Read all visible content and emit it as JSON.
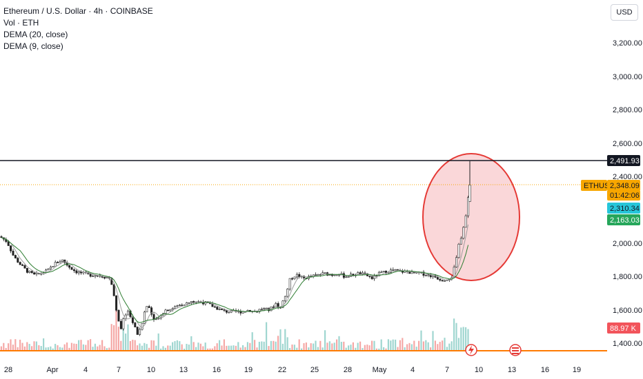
{
  "legend": {
    "title": "Ethereum / U.S. Dollar · 4h · COINBASE",
    "vol": "Vol · ETH",
    "dema20": "DEMA (20, close)",
    "dema9": "DEMA (9, close)"
  },
  "currency_button": "USD",
  "chart_data": {
    "type": "candlestick",
    "symbol": "ETHUSD",
    "y_ticks": [
      "3,200.00",
      "3,000.00",
      "2,800.00",
      "2,600.00",
      "2,400.00",
      "2,000.00",
      "1,800.00",
      "1,600.00",
      "1,400.00"
    ],
    "y_tick_values": [
      3200,
      3000,
      2800,
      2600,
      2400,
      2000,
      1800,
      1600,
      1400
    ],
    "ylim": [
      1340,
      3280
    ],
    "x_ticks": [
      "28",
      "Apr",
      "4",
      "7",
      "10",
      "13",
      "16",
      "19",
      "22",
      "25",
      "28",
      "May",
      "4",
      "7",
      "10",
      "13",
      "16",
      "19"
    ],
    "price_series_approx": [
      [
        0,
        2040
      ],
      [
        10,
        2010
      ],
      [
        20,
        1920
      ],
      [
        30,
        1870
      ],
      [
        40,
        1830
      ],
      [
        50,
        1810
      ],
      [
        60,
        1820
      ],
      [
        70,
        1840
      ],
      [
        80,
        1880
      ],
      [
        90,
        1900
      ],
      [
        100,
        1860
      ],
      [
        110,
        1830
      ],
      [
        120,
        1820
      ],
      [
        130,
        1810
      ],
      [
        140,
        1810
      ],
      [
        150,
        1800
      ],
      [
        160,
        1790
      ],
      [
        165,
        1700
      ],
      [
        170,
        1560
      ],
      [
        175,
        1480
      ],
      [
        180,
        1560
      ],
      [
        185,
        1600
      ],
      [
        190,
        1550
      ],
      [
        195,
        1500
      ],
      [
        200,
        1450
      ],
      [
        205,
        1500
      ],
      [
        210,
        1600
      ],
      [
        215,
        1640
      ],
      [
        220,
        1570
      ],
      [
        225,
        1540
      ],
      [
        230,
        1560
      ],
      [
        240,
        1600
      ],
      [
        250,
        1610
      ],
      [
        260,
        1630
      ],
      [
        270,
        1640
      ],
      [
        280,
        1650
      ],
      [
        290,
        1650
      ],
      [
        300,
        1640
      ],
      [
        310,
        1620
      ],
      [
        320,
        1600
      ],
      [
        330,
        1590
      ],
      [
        340,
        1590
      ],
      [
        350,
        1590
      ],
      [
        360,
        1600
      ],
      [
        370,
        1590
      ],
      [
        380,
        1610
      ],
      [
        390,
        1600
      ],
      [
        395,
        1620
      ],
      [
        400,
        1640
      ],
      [
        405,
        1610
      ],
      [
        410,
        1650
      ],
      [
        415,
        1700
      ],
      [
        420,
        1780
      ],
      [
        425,
        1800
      ],
      [
        430,
        1810
      ],
      [
        440,
        1790
      ],
      [
        450,
        1800
      ],
      [
        460,
        1810
      ],
      [
        470,
        1820
      ],
      [
        480,
        1810
      ],
      [
        490,
        1820
      ],
      [
        500,
        1800
      ],
      [
        510,
        1810
      ],
      [
        520,
        1820
      ],
      [
        530,
        1810
      ],
      [
        540,
        1790
      ],
      [
        550,
        1820
      ],
      [
        560,
        1830
      ],
      [
        570,
        1840
      ],
      [
        580,
        1830
      ],
      [
        590,
        1830
      ],
      [
        600,
        1820
      ],
      [
        610,
        1820
      ],
      [
        620,
        1810
      ],
      [
        630,
        1800
      ],
      [
        640,
        1780
      ],
      [
        650,
        1790
      ],
      [
        655,
        1800
      ],
      [
        660,
        1880
      ],
      [
        665,
        1990
      ],
      [
        670,
        2060
      ],
      [
        675,
        2150
      ],
      [
        678,
        2250
      ],
      [
        680,
        2348
      ]
    ],
    "last_candle_high": 2491.93,
    "horizontal_line": 2491.93,
    "price_tags": [
      {
        "label": "ETHUSD",
        "value": "2,348.09",
        "time": "01:42:06",
        "color": "#f7a600"
      },
      {
        "value": "2,491.93",
        "color": "#131722"
      },
      {
        "value": "2,310.34",
        "color": "#26c6da"
      },
      {
        "value": "2,163.03",
        "color": "#26a65b"
      },
      {
        "value": "88.97 K",
        "color": "#f2545b"
      }
    ],
    "volume_last": "88.97 K",
    "annotation": "highlight ellipse around price spike"
  },
  "colors": {
    "up": "#26a69a",
    "down": "#ef5350",
    "dema20": "#2e7d32",
    "dema9": "#b0b0b0",
    "ellipse_fill": "#f8c9cc",
    "ellipse_stroke": "#e53935",
    "orange_line": "#ff7a00"
  }
}
